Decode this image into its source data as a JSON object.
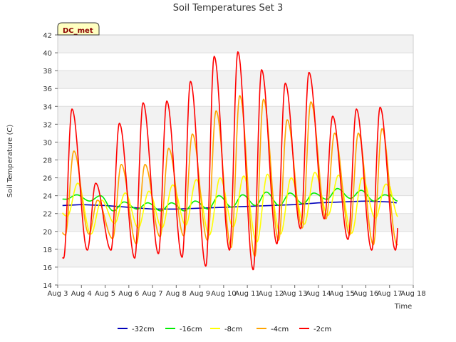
{
  "chart_data": {
    "type": "line",
    "title": "Soil Temperatures Set 3",
    "xlabel": "Time",
    "ylabel": "Soil Temperature (C)",
    "badge": "DC_met",
    "xlim": [
      3,
      18
    ],
    "ylim": [
      14,
      42
    ],
    "x_ticks": [
      3,
      4,
      5,
      6,
      7,
      8,
      9,
      10,
      11,
      12,
      13,
      14,
      15,
      16,
      17,
      18
    ],
    "x_tick_labels": [
      "Aug 3",
      "Aug 4",
      "Aug 5",
      "Aug 6",
      "Aug 7",
      "Aug 8",
      "Aug 9",
      "Aug 10",
      "Aug 11",
      "Aug 12",
      "Aug 13",
      "Aug 14",
      "Aug 15",
      "Aug 16",
      "Aug 17",
      "Aug 18"
    ],
    "y_ticks": [
      14,
      16,
      18,
      20,
      22,
      24,
      26,
      28,
      30,
      32,
      34,
      36,
      38,
      40,
      42
    ],
    "grid": "horizontal bands",
    "legend_position": "bottom-center",
    "days": [
      3,
      4,
      5,
      6,
      7,
      8,
      9,
      10,
      11,
      12,
      13,
      14,
      15,
      16
    ],
    "series": [
      {
        "name": "-32cm",
        "color": "#0000bb",
        "x": [
          3.2,
          4,
          5,
          6,
          7,
          8,
          9,
          10,
          11,
          12,
          13,
          14,
          15,
          16,
          17,
          17.3
        ],
        "y": [
          22.9,
          23.0,
          22.9,
          22.7,
          22.5,
          22.5,
          22.6,
          22.7,
          22.8,
          22.9,
          23.0,
          23.2,
          23.3,
          23.4,
          23.3,
          23.2
        ]
      },
      {
        "name": "-16cm",
        "color": "#00ee00",
        "day_min": [
          23.6,
          23.4,
          22.3,
          22.5,
          22.3,
          22.3,
          22.5,
          22.7,
          22.9,
          22.9,
          23.1,
          23.6,
          23.7,
          23.4
        ],
        "day_max": [
          24.1,
          24.0,
          23.3,
          23.2,
          23.2,
          23.4,
          24.0,
          24.1,
          24.4,
          24.3,
          24.3,
          24.8,
          24.6,
          24.1
        ],
        "phase": {
          "min": 0.35,
          "max": 0.8
        }
      },
      {
        "name": "-8cm",
        "color": "#ffff00",
        "day_min": [
          21.7,
          19.7,
          20.9,
          20.4,
          20.4,
          20.7,
          19.6,
          20.5,
          18.8,
          19.7,
          20.8,
          21.8,
          19.8,
          21.5
        ],
        "day_max": [
          25.4,
          23.5,
          24.3,
          24.5,
          25.2,
          25.8,
          26.0,
          26.2,
          26.4,
          26.0,
          26.6,
          26.3,
          26.0,
          25.3
        ],
        "phase": {
          "min": 0.4,
          "max": 0.85
        }
      },
      {
        "name": "-4cm",
        "color": "#ffa500",
        "day_min": [
          19.6,
          19.7,
          19.2,
          18.6,
          19.4,
          19.5,
          19.0,
          18.2,
          17.2,
          19.0,
          20.4,
          21.4,
          19.6,
          18.5
        ],
        "day_max": [
          29.0,
          23.5,
          27.5,
          27.5,
          29.3,
          30.9,
          33.5,
          35.2,
          34.8,
          32.5,
          34.5,
          31.0,
          31.0,
          31.5
        ],
        "phase": {
          "min": 0.32,
          "max": 0.68
        }
      },
      {
        "name": "-2cm",
        "color": "#ff0000",
        "day_min": [
          17.0,
          17.9,
          17.9,
          17.0,
          17.5,
          17.1,
          16.1,
          17.9,
          15.7,
          18.6,
          20.3,
          21.4,
          19.1,
          17.9
        ],
        "day_max": [
          33.7,
          25.4,
          32.1,
          34.4,
          34.6,
          36.8,
          39.6,
          40.1,
          38.1,
          36.6,
          37.8,
          32.9,
          33.7,
          33.9
        ],
        "phase": {
          "min": 0.25,
          "max": 0.6
        }
      }
    ]
  }
}
